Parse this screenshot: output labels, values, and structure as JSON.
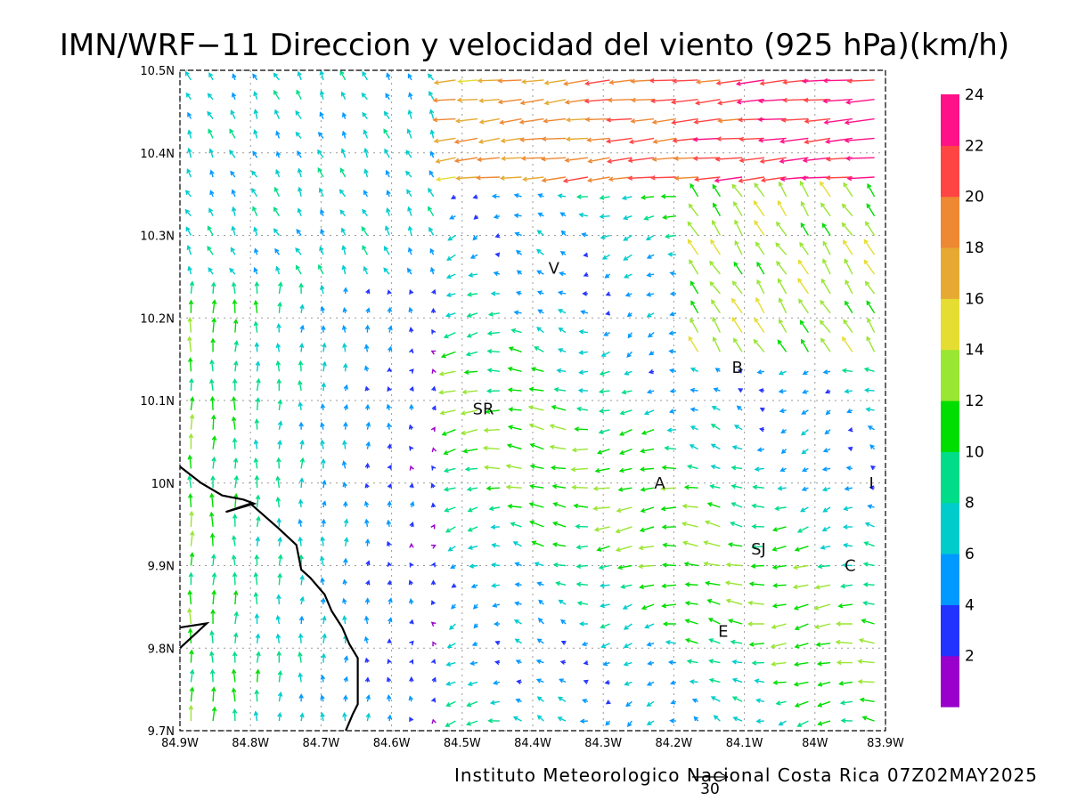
{
  "title": "IMN/WRF−11 Direccion y velocidad del viento (925 hPa)(km/h)",
  "footer": "Instituto Meteorologico Nacional Costa Rica 07Z02MAY2025",
  "reference_vector_label": "30",
  "map": {
    "lon_range": [
      -84.9,
      -83.9
    ],
    "lat_range": [
      9.7,
      10.5
    ],
    "x_ticks": [
      {
        "lon": -84.9,
        "label": "84.9W"
      },
      {
        "lon": -84.8,
        "label": "84.8W"
      },
      {
        "lon": -84.7,
        "label": "84.7W"
      },
      {
        "lon": -84.6,
        "label": "84.6W"
      },
      {
        "lon": -84.5,
        "label": "84.5W"
      },
      {
        "lon": -84.4,
        "label": "84.4W"
      },
      {
        "lon": -84.3,
        "label": "84.3W"
      },
      {
        "lon": -84.2,
        "label": "84.2W"
      },
      {
        "lon": -84.1,
        "label": "84.1W"
      },
      {
        "lon": -84.0,
        "label": "84W"
      },
      {
        "lon": -83.9,
        "label": "83.9W"
      }
    ],
    "y_ticks": [
      {
        "lat": 10.5,
        "label": "10.5N"
      },
      {
        "lat": 10.4,
        "label": "10.4N"
      },
      {
        "lat": 10.3,
        "label": "10.3N"
      },
      {
        "lat": 10.2,
        "label": "10.2N"
      },
      {
        "lat": 10.1,
        "label": "10.1N"
      },
      {
        "lat": 10.0,
        "label": "10N"
      },
      {
        "lat": 9.9,
        "label": "9.9N"
      },
      {
        "lat": 9.8,
        "label": "9.8N"
      },
      {
        "lat": 9.7,
        "label": "9.7N"
      }
    ],
    "cities": [
      {
        "label": "V",
        "lon": -84.37,
        "lat": 10.26
      },
      {
        "label": "SR",
        "lon": -84.47,
        "lat": 10.09
      },
      {
        "label": "B",
        "lon": -84.11,
        "lat": 10.14
      },
      {
        "label": "A",
        "lon": -84.22,
        "lat": 10.0
      },
      {
        "label": "I",
        "lon": -83.92,
        "lat": 10.0
      },
      {
        "label": "SJ",
        "lon": -84.08,
        "lat": 9.92
      },
      {
        "label": "C",
        "lon": -83.95,
        "lat": 9.9
      },
      {
        "label": "E",
        "lon": -84.13,
        "lat": 9.82
      }
    ],
    "coastline": [
      [
        -84.9,
        10.02
      ],
      [
        -84.87,
        10.0
      ],
      [
        -84.84,
        9.985
      ],
      [
        -84.81,
        9.98
      ],
      [
        -84.795,
        9.975
      ],
      [
        -84.835,
        9.965
      ],
      [
        -84.8,
        9.975
      ],
      [
        -84.78,
        9.96
      ],
      [
        -84.76,
        9.945
      ],
      [
        -84.735,
        9.925
      ],
      [
        -84.728,
        9.895
      ],
      [
        -84.715,
        9.885
      ],
      [
        -84.695,
        9.865
      ],
      [
        -84.685,
        9.845
      ],
      [
        -84.67,
        9.825
      ],
      [
        -84.66,
        9.805
      ],
      [
        -84.648,
        9.788
      ],
      [
        -84.648,
        9.732
      ],
      [
        -84.655,
        9.72
      ],
      [
        -84.665,
        9.7
      ]
    ],
    "peninsula": [
      [
        -84.9,
        9.8
      ],
      [
        -84.862,
        9.83
      ],
      [
        -84.9,
        9.825
      ]
    ]
  },
  "wind_speed_legend": {
    "colors": [
      "#9900cc",
      "#2233ff",
      "#0099ff",
      "#00cccc",
      "#00dd88",
      "#00dd00",
      "#99e633",
      "#e6dd33",
      "#e6aa33",
      "#ee8833",
      "#ff4444",
      "#ff1188"
    ],
    "labels": [
      "2",
      "4",
      "6",
      "8",
      "10",
      "12",
      "14",
      "16",
      "18",
      "20",
      "22",
      "24"
    ]
  }
}
